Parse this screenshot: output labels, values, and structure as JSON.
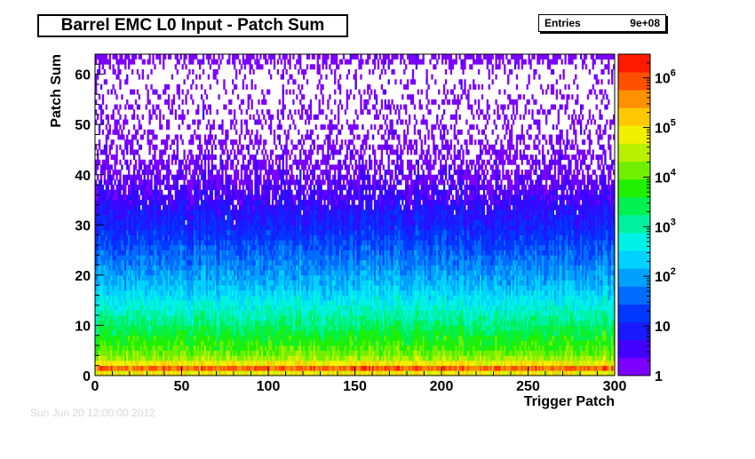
{
  "chart_data": {
    "type": "heatmap",
    "title": "Barrel EMC L0 Input - Patch Sum",
    "xlabel": "Trigger Patch",
    "ylabel": "Patch Sum",
    "xlim": [
      0,
      300
    ],
    "ylim": [
      0,
      64
    ],
    "x_ticks": [
      0,
      50,
      100,
      150,
      200,
      250,
      300
    ],
    "y_ticks": [
      0,
      10,
      20,
      30,
      40,
      50,
      60
    ],
    "z_scale": "log",
    "z_range": [
      1,
      3000000
    ],
    "z_ticks": [
      {
        "value": 1,
        "base": "1",
        "exp": ""
      },
      {
        "value": 10,
        "base": "10",
        "exp": ""
      },
      {
        "value": 100,
        "base": "10",
        "exp": "2"
      },
      {
        "value": 1000,
        "base": "10",
        "exp": "3"
      },
      {
        "value": 10000,
        "base": "10",
        "exp": "4"
      },
      {
        "value": 100000,
        "base": "10",
        "exp": "5"
      },
      {
        "value": 1000000,
        "base": "10",
        "exp": "6"
      }
    ],
    "stats": {
      "entries_label": "Entries",
      "entries_value": "9e+08"
    },
    "density_profile": {
      "y": [
        0,
        1,
        2,
        3,
        5,
        8,
        10,
        12,
        15,
        18,
        20,
        23,
        25,
        28,
        30,
        33,
        35,
        38,
        40,
        45,
        50,
        55,
        60,
        62,
        63
      ],
      "log10_counts": [
        3.5,
        6.3,
        5.3,
        4.5,
        4.0,
        3.6,
        3.3,
        3.0,
        2.6,
        2.2,
        2.0,
        1.7,
        1.5,
        1.2,
        1.0,
        0.8,
        0.6,
        0.4,
        0.3,
        0.1,
        0.05,
        0.0,
        0.0,
        0.0,
        0.0
      ],
      "occupancy": [
        1,
        1,
        1,
        1,
        1,
        1,
        1,
        1,
        1,
        1,
        1,
        1,
        1,
        1,
        1,
        0.98,
        0.93,
        0.8,
        0.65,
        0.45,
        0.3,
        0.22,
        0.17,
        0.3,
        0.65
      ]
    },
    "palette": [
      "#7b00ff",
      "#4200ff",
      "#1a1aff",
      "#0038ff",
      "#006cff",
      "#00a0ff",
      "#00d2ff",
      "#00f2e6",
      "#00f2a0",
      "#00f050",
      "#20f000",
      "#70f000",
      "#b8f000",
      "#f0f000",
      "#ffc800",
      "#ff9000",
      "#ff5000",
      "#ff1a00"
    ],
    "footer_stamp": "Sun Jun 20 12:00:00 2012"
  }
}
